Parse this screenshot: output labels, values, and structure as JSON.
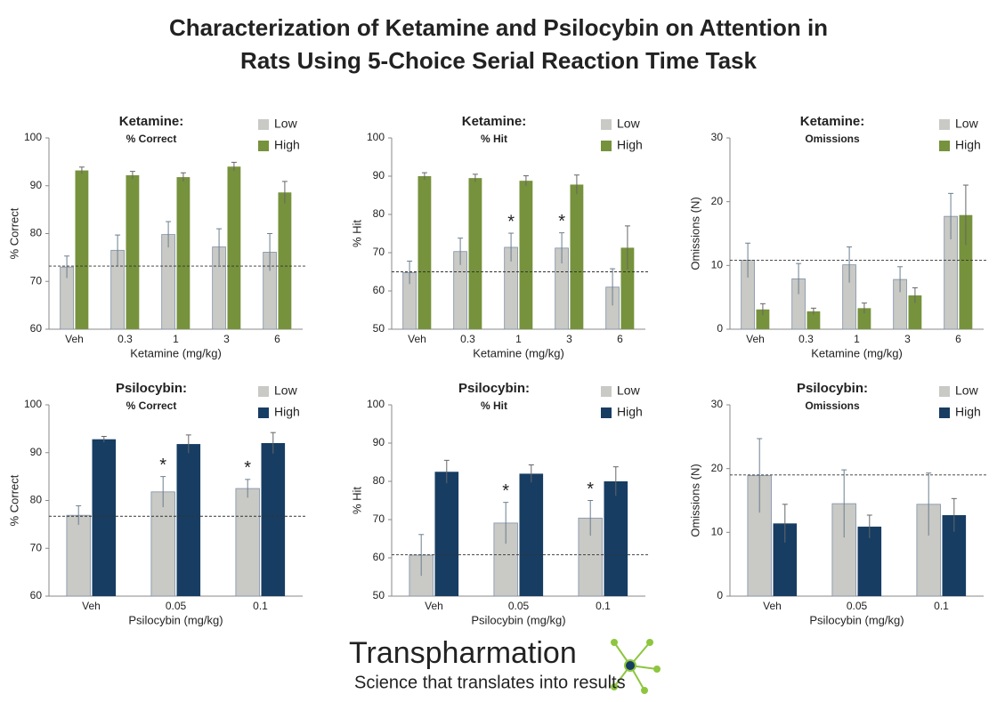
{
  "header": {
    "title": [
      "Characterization of Ketamine and Psilocybin on Attention in",
      "Rats Using 5-Choice Serial Reaction Time Task"
    ]
  },
  "chart_data": [
    {
      "type": "bar",
      "title": "Ketamine:",
      "subtitle": "% Correct",
      "x_label": "Ketamine (mg/kg)",
      "y_label": "% Correct",
      "categories": [
        "Veh",
        "0.3",
        "1",
        "3",
        "6"
      ],
      "series": [
        {
          "name": "Low",
          "color": "#c9c9c5",
          "values": [
            73,
            76.5,
            79.8,
            77.2,
            76.1
          ],
          "errors": [
            2.3,
            3.2,
            2.7,
            3.8,
            3.9
          ],
          "markers": [
            null,
            null,
            null,
            null,
            null
          ]
        },
        {
          "name": "High",
          "color": "#76923c",
          "values": [
            93.2,
            92.2,
            91.8,
            94,
            88.6
          ],
          "errors": [
            0.7,
            0.8,
            0.9,
            0.9,
            2.3
          ],
          "markers": [
            null,
            null,
            null,
            null,
            null
          ]
        }
      ],
      "ylim": [
        60,
        100
      ],
      "yticks": [
        60,
        70,
        80,
        90,
        100
      ],
      "reference_line": 73.2,
      "legend": "top-right"
    },
    {
      "type": "bar",
      "title": "Ketamine:",
      "subtitle": "% Hit",
      "x_label": "Ketamine (mg/kg)",
      "y_label": "% Hit",
      "categories": [
        "Veh",
        "0.3",
        "1",
        "3",
        "6"
      ],
      "series": [
        {
          "name": "Low",
          "color": "#c9c9c5",
          "values": [
            64.8,
            70.3,
            71.4,
            71.2,
            61
          ],
          "errors": [
            3,
            3.5,
            3.7,
            4,
            4.8
          ],
          "markers": [
            null,
            null,
            "*",
            "*",
            null
          ]
        },
        {
          "name": "High",
          "color": "#76923c",
          "values": [
            90,
            89.5,
            88.8,
            87.8,
            71.3
          ],
          "errors": [
            0.9,
            1,
            1.3,
            2.5,
            5.7
          ],
          "markers": [
            null,
            null,
            null,
            null,
            null
          ]
        }
      ],
      "ylim": [
        50,
        100
      ],
      "yticks": [
        50,
        60,
        70,
        80,
        90,
        100
      ],
      "reference_line": 65,
      "legend": "top-right"
    },
    {
      "type": "bar",
      "title": "Ketamine:",
      "subtitle": "Omissions",
      "x_label": "Ketamine (mg/kg)",
      "y_label": "Omissions (N)",
      "categories": [
        "Veh",
        "0.3",
        "1",
        "3",
        "6"
      ],
      "series": [
        {
          "name": "Low",
          "color": "#c9c9c5",
          "values": [
            10.8,
            7.9,
            10.1,
            7.8,
            17.7
          ],
          "errors": [
            2.7,
            2.4,
            2.8,
            2,
            3.6
          ],
          "markers": [
            null,
            null,
            null,
            null,
            null
          ]
        },
        {
          "name": "High",
          "color": "#76923c",
          "values": [
            3.1,
            2.8,
            3.3,
            5.3,
            17.9
          ],
          "errors": [
            0.9,
            0.5,
            0.8,
            1.2,
            4.7
          ],
          "markers": [
            null,
            null,
            null,
            null,
            null
          ]
        }
      ],
      "ylim": [
        0,
        30
      ],
      "yticks": [
        0,
        10,
        20,
        30
      ],
      "reference_line": 10.8,
      "legend": "top-right"
    },
    {
      "type": "bar",
      "title": "Psilocybin:",
      "subtitle": "% Correct",
      "x_label": "Psilocybin (mg/kg)",
      "y_label": "% Correct",
      "categories": [
        "Veh",
        "0.05",
        "0.1"
      ],
      "series": [
        {
          "name": "Low",
          "color": "#c9c9c5",
          "values": [
            76.9,
            81.8,
            82.5
          ],
          "errors": [
            2,
            3.2,
            1.9
          ],
          "markers": [
            null,
            "*",
            "*"
          ]
        },
        {
          "name": "High",
          "color": "#173d63",
          "values": [
            92.8,
            91.8,
            92
          ],
          "errors": [
            0.6,
            1.9,
            2.2
          ],
          "markers": [
            null,
            null,
            null
          ]
        }
      ],
      "ylim": [
        60,
        100
      ],
      "yticks": [
        60,
        70,
        80,
        90,
        100
      ],
      "reference_line": 76.7,
      "legend": "top-right"
    },
    {
      "type": "bar",
      "title": "Psilocybin:",
      "subtitle": "% Hit",
      "x_label": "Psilocybin (mg/kg)",
      "y_label": "% Hit",
      "categories": [
        "Veh",
        "0.05",
        "0.1"
      ],
      "series": [
        {
          "name": "Low",
          "color": "#c9c9c5",
          "values": [
            60.7,
            69.1,
            70.4
          ],
          "errors": [
            5.4,
            5.4,
            4.6
          ],
          "markers": [
            null,
            "*",
            "*"
          ]
        },
        {
          "name": "High",
          "color": "#173d63",
          "values": [
            82.5,
            82,
            80
          ],
          "errors": [
            3,
            2.3,
            3.8
          ],
          "markers": [
            null,
            null,
            null
          ]
        }
      ],
      "ylim": [
        50,
        100
      ],
      "yticks": [
        50,
        60,
        70,
        80,
        90,
        100
      ],
      "reference_line": 60.8,
      "legend": "top-right"
    },
    {
      "type": "bar",
      "title": "Psilocybin:",
      "subtitle": "Omissions",
      "x_label": "Psilocybin (mg/kg)",
      "y_label": "Omissions (N)",
      "categories": [
        "Veh",
        "0.05",
        "0.1"
      ],
      "series": [
        {
          "name": "Low",
          "color": "#c9c9c5",
          "values": [
            18.9,
            14.5,
            14.4
          ],
          "errors": [
            5.8,
            5.3,
            4.9
          ],
          "markers": [
            null,
            null,
            null
          ]
        },
        {
          "name": "High",
          "color": "#173d63",
          "values": [
            11.4,
            10.9,
            12.7
          ],
          "errors": [
            3,
            1.8,
            2.6
          ],
          "markers": [
            null,
            null,
            null
          ]
        }
      ],
      "ylim": [
        0,
        30
      ],
      "yticks": [
        0,
        10,
        20,
        30
      ],
      "reference_line": 19,
      "legend": "top-right"
    }
  ],
  "logo": {
    "name": "Transpharmation",
    "tagline": "Science that translates into results"
  }
}
